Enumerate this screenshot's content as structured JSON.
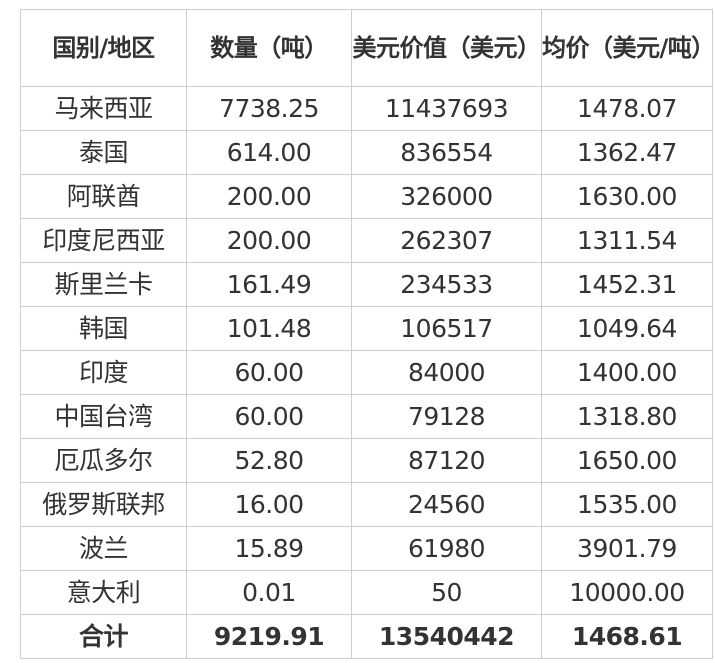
{
  "headers": [
    "国别/地区",
    "数量（吨）",
    "美元价值（美元）",
    "均价（美元/吨）"
  ],
  "rows": [
    [
      "马来西亚",
      "7738.25",
      "11437693",
      "1478.07"
    ],
    [
      "泰国",
      "614.00",
      "836554",
      "1362.47"
    ],
    [
      "阿联酋",
      "200.00",
      "326000",
      "1630.00"
    ],
    [
      "印度尼西亚",
      "200.00",
      "262307",
      "1311.54"
    ],
    [
      "斯里兰卡",
      "161.49",
      "234533",
      "1452.31"
    ],
    [
      "韩国",
      "101.48",
      "106517",
      "1049.64"
    ],
    [
      "印度",
      "60.00",
      "84000",
      "1400.00"
    ],
    [
      "中国台湾",
      "60.00",
      "79128",
      "1318.80"
    ],
    [
      "厄瓜多尔",
      "52.80",
      "87120",
      "1650.00"
    ],
    [
      "俄罗斯联邦",
      "16.00",
      "24560",
      "1535.00"
    ],
    [
      "波兰",
      "15.89",
      "61980",
      "3901.79"
    ],
    [
      "意大利",
      "0.01",
      "50",
      "10000.00"
    ]
  ],
  "total": [
    "合计",
    "9219.91",
    "13540442",
    "1468.61"
  ]
}
